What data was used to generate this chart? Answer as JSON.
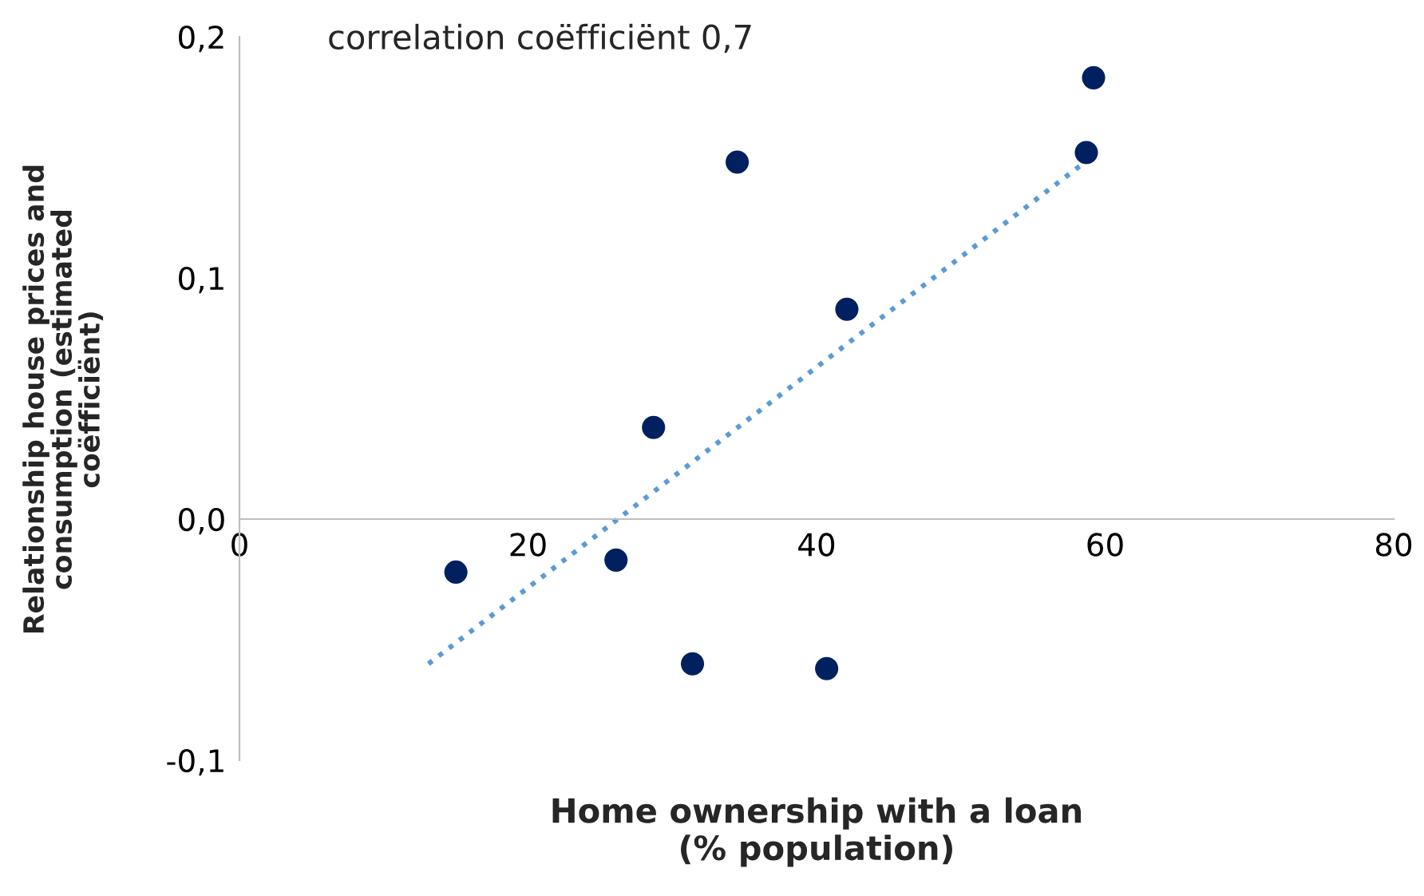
{
  "chart_data": {
    "type": "scatter",
    "xlabel": "Home ownership with a loan\n(% population)",
    "ylabel": "Relationship house prices and\nconsumption (estimated\ncoëfficiënt)",
    "annotations": [
      "correlation coëfficiënt 0,7"
    ],
    "series": [
      {
        "color": "#002060",
        "marker": "circle",
        "x": [
          15.0,
          26.1,
          28.7,
          31.4,
          34.5,
          40.7,
          42.1,
          58.7,
          59.2
        ],
        "values": [
          -0.022,
          -0.017,
          0.038,
          -0.06,
          0.148,
          -0.062,
          0.087,
          0.152,
          0.183
        ]
      },
      {
        "type": "line",
        "color": "#5b9bd5",
        "line_style": "dotted",
        "x": [
          13.1,
          58.6
        ],
        "values": [
          -0.06,
          0.148
        ]
      }
    ],
    "xlim": [
      0,
      80
    ],
    "ylim": [
      -0.1,
      0.2
    ],
    "xticks": [
      0,
      20,
      40,
      60,
      80
    ],
    "yticks": [
      {
        "value": -0.1,
        "label": "-0,1"
      },
      {
        "value": 0.0,
        "label": "0,0"
      },
      {
        "value": 0.1,
        "label": "0,1"
      },
      {
        "value": 0.2,
        "label": "0,2"
      }
    ],
    "grid": false,
    "legend": false
  }
}
